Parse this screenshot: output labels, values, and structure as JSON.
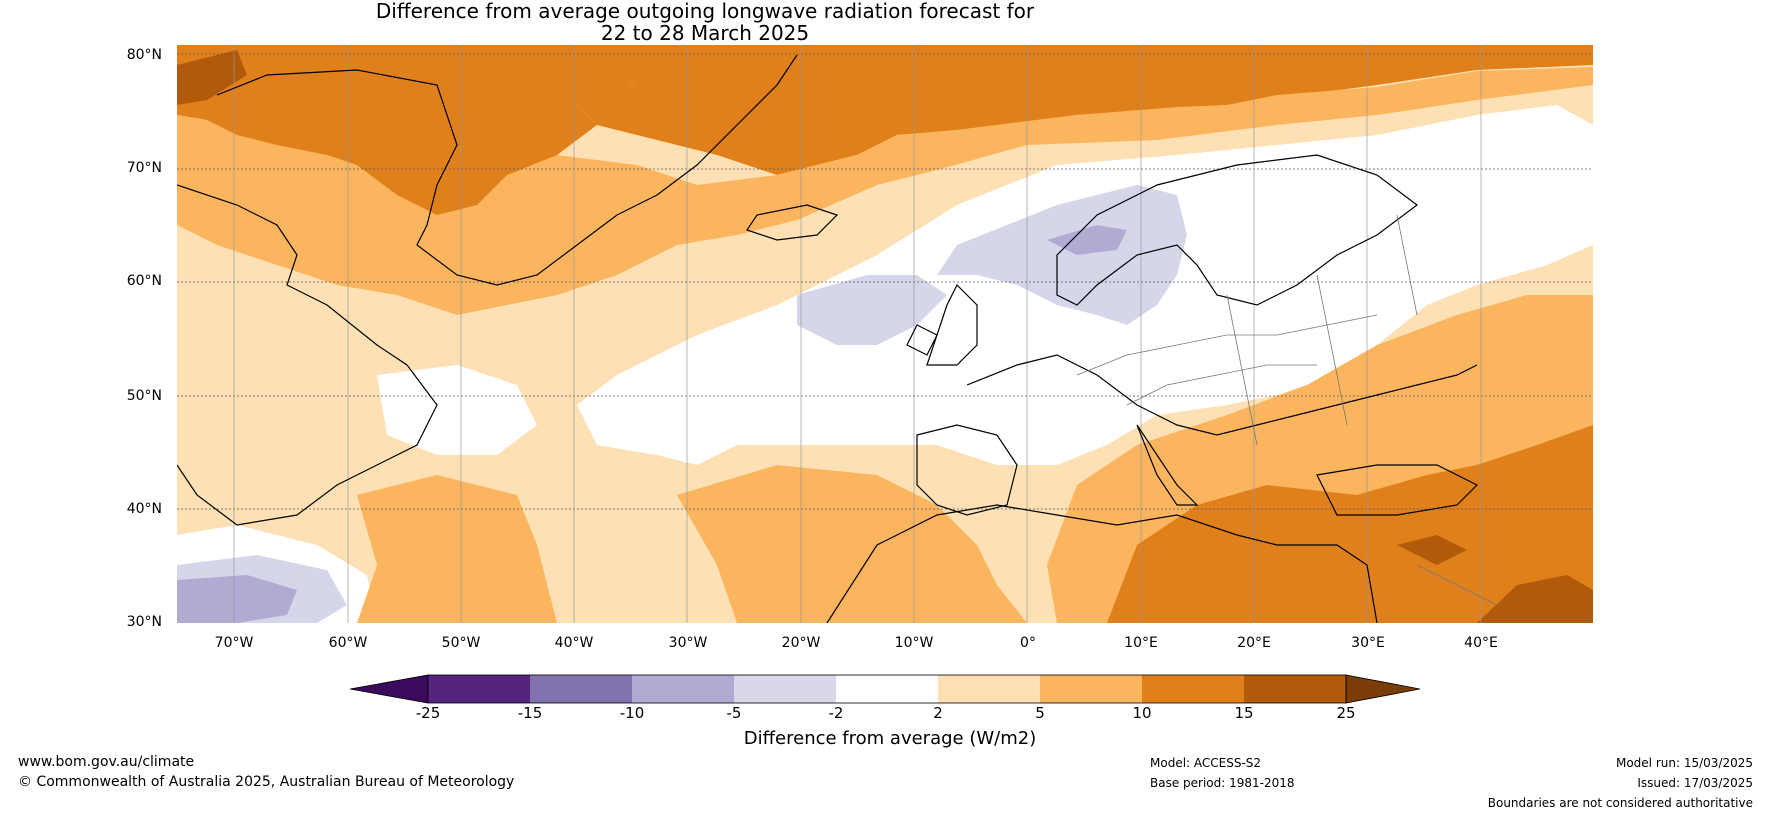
{
  "title": {
    "line1": "Difference from average outgoing longwave radiation forecast for",
    "line2": "22 to 28 March 2025"
  },
  "map": {
    "lat_labels": [
      "80°N",
      "70°N",
      "60°N",
      "50°N",
      "40°N",
      "30°N"
    ],
    "lon_labels": [
      "70°W",
      "60°W",
      "50°W",
      "40°W",
      "30°W",
      "20°W",
      "10°W",
      "0°",
      "10°E",
      "20°E",
      "30°E",
      "40°E"
    ],
    "colors": {
      "ocean_white": "#ffffff",
      "light_orange": "#fde1b4",
      "mid_orange": "#fbb55e",
      "dark_orange": "#e0801a",
      "brown": "#b05a0a",
      "light_purple": "#d6d6ea",
      "mid_purple": "#b1aad3"
    }
  },
  "colorbar": {
    "tick_labels": [
      "-25",
      "-15",
      "-10",
      "-5",
      "-2",
      "2",
      "5",
      "10",
      "15",
      "25"
    ],
    "colors": [
      "#3b0a5c",
      "#54247f",
      "#8173ae",
      "#b1aad3",
      "#d8d8ea",
      "#ffffff",
      "#fde1b4",
      "#fbb55e",
      "#e0801a",
      "#b05a0a",
      "#7a3d08"
    ],
    "title": "Difference from average (W/m2)"
  },
  "footer": {
    "website": "www.bom.gov.au/climate",
    "copyright": "© Commonwealth of Australia 2025, Australian Bureau of Meteorology",
    "model": "Model: ACCESS-S2",
    "base_period": "Base period: 1981-2018",
    "model_run": "Model run: 15/03/2025",
    "issued": "Issued: 17/03/2025",
    "disclaimer": "Boundaries are not considered authoritative"
  }
}
